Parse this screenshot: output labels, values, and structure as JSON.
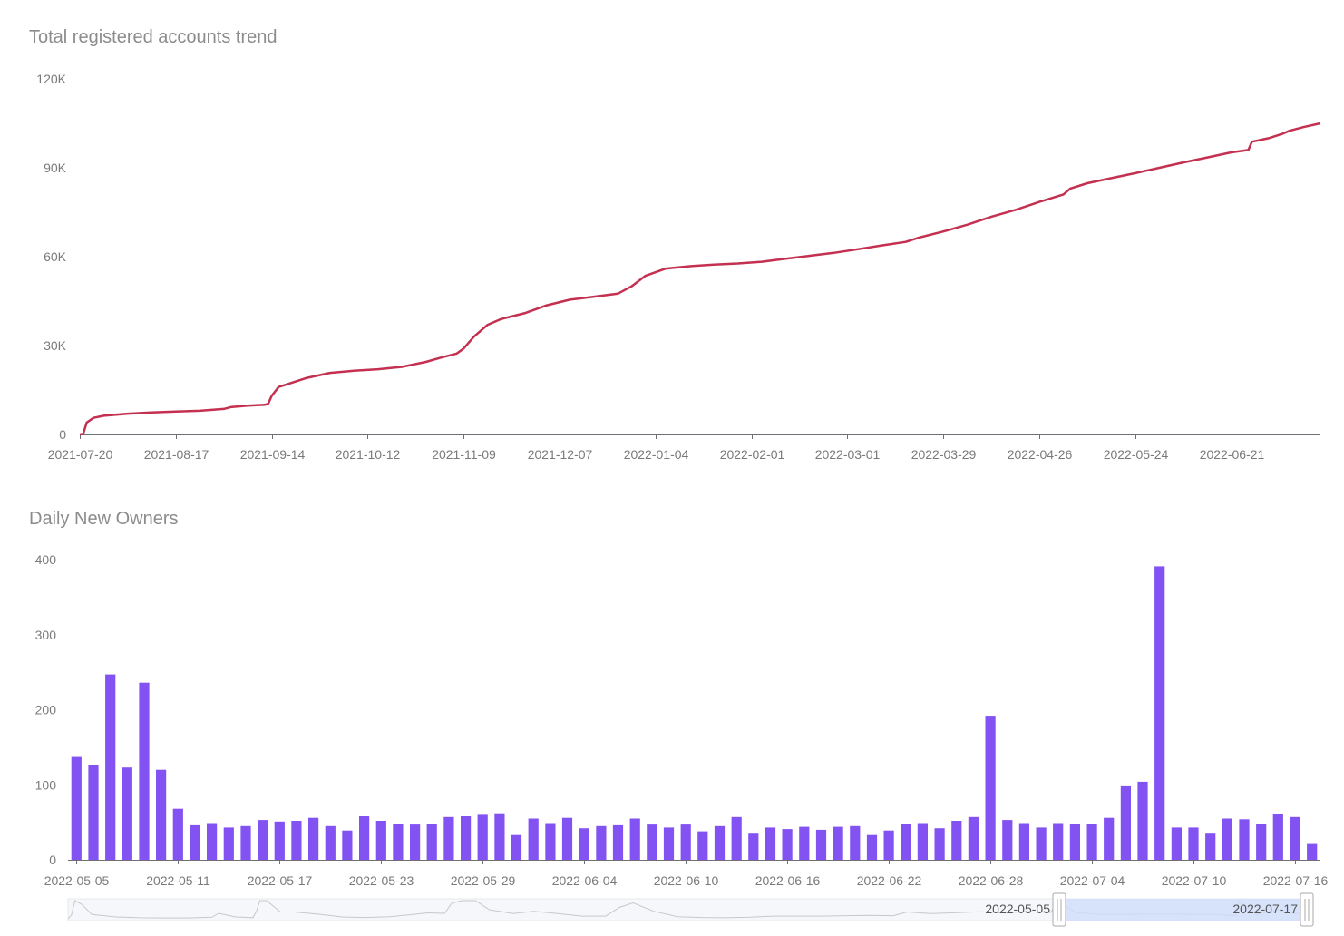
{
  "chart_data": [
    {
      "type": "line",
      "title": "Total registered accounts trend",
      "xlabel": "",
      "ylabel": "",
      "color": "#c4304f",
      "ylim": [
        0,
        120000
      ],
      "y_ticks": [
        "0",
        "30K",
        "60K",
        "90K",
        "120K"
      ],
      "y_tick_values": [
        0,
        30000,
        60000,
        90000,
        120000
      ],
      "x_ticks": [
        "2021-07-20",
        "2021-08-17",
        "2021-09-14",
        "2021-10-12",
        "2021-11-09",
        "2021-12-07",
        "2022-01-04",
        "2022-02-01",
        "2022-03-01",
        "2022-03-29",
        "2022-04-26",
        "2022-05-24",
        "2022-06-21"
      ],
      "x_range": [
        "2021-07-20",
        "2022-07-17"
      ],
      "series": [
        {
          "points": [
            [
              "2021-07-20",
              0
            ],
            [
              "2021-07-21",
              200
            ],
            [
              "2021-07-22",
              4000
            ],
            [
              "2021-07-24",
              5600
            ],
            [
              "2021-07-27",
              6300
            ],
            [
              "2021-08-03",
              7000
            ],
            [
              "2021-08-10",
              7400
            ],
            [
              "2021-08-17",
              7700
            ],
            [
              "2021-08-24",
              8000
            ],
            [
              "2021-08-31",
              8600
            ],
            [
              "2021-09-02",
              9200
            ],
            [
              "2021-09-07",
              9700
            ],
            [
              "2021-09-12",
              10000
            ],
            [
              "2021-09-13",
              10400
            ],
            [
              "2021-09-14",
              13000
            ],
            [
              "2021-09-16",
              16000
            ],
            [
              "2021-09-20",
              17500
            ],
            [
              "2021-09-24",
              19000
            ],
            [
              "2021-10-01",
              20800
            ],
            [
              "2021-10-08",
              21500
            ],
            [
              "2021-10-15",
              22000
            ],
            [
              "2021-10-22",
              22800
            ],
            [
              "2021-10-29",
              24500
            ],
            [
              "2021-11-02",
              25800
            ],
            [
              "2021-11-07",
              27300
            ],
            [
              "2021-11-09",
              29000
            ],
            [
              "2021-11-12",
              33000
            ],
            [
              "2021-11-16",
              37000
            ],
            [
              "2021-11-20",
              39000
            ],
            [
              "2021-11-27",
              41000
            ],
            [
              "2021-12-03",
              43500
            ],
            [
              "2021-12-10",
              45500
            ],
            [
              "2021-12-17",
              46500
            ],
            [
              "2021-12-24",
              47500
            ],
            [
              "2021-12-28",
              50000
            ],
            [
              "2022-01-01",
              53500
            ],
            [
              "2022-01-07",
              56000
            ],
            [
              "2022-01-14",
              56800
            ],
            [
              "2022-01-21",
              57300
            ],
            [
              "2022-01-28",
              57700
            ],
            [
              "2022-02-04",
              58300
            ],
            [
              "2022-02-11",
              59300
            ],
            [
              "2022-02-18",
              60300
            ],
            [
              "2022-02-25",
              61300
            ],
            [
              "2022-03-04",
              62500
            ],
            [
              "2022-03-11",
              63800
            ],
            [
              "2022-03-18",
              65000
            ],
            [
              "2022-03-22",
              66500
            ],
            [
              "2022-03-29",
              68500
            ],
            [
              "2022-04-05",
              70800
            ],
            [
              "2022-04-12",
              73500
            ],
            [
              "2022-04-19",
              75800
            ],
            [
              "2022-04-26",
              78500
            ],
            [
              "2022-05-03",
              81000
            ],
            [
              "2022-05-05",
              83000
            ],
            [
              "2022-05-10",
              84800
            ],
            [
              "2022-05-17",
              86500
            ],
            [
              "2022-05-24",
              88200
            ],
            [
              "2022-05-31",
              90000
            ],
            [
              "2022-06-07",
              91800
            ],
            [
              "2022-06-14",
              93500
            ],
            [
              "2022-06-21",
              95200
            ],
            [
              "2022-06-26",
              96000
            ],
            [
              "2022-06-27",
              98800
            ],
            [
              "2022-07-02",
              100000
            ],
            [
              "2022-07-06",
              101500
            ],
            [
              "2022-07-08",
              102500
            ],
            [
              "2022-07-12",
              103700
            ],
            [
              "2022-07-17",
              105000
            ]
          ]
        }
      ]
    },
    {
      "type": "bar",
      "title": "Daily New Owners",
      "xlabel": "",
      "ylabel": "",
      "color": "#8352f2",
      "ylim": [
        0,
        400
      ],
      "y_ticks": [
        "0",
        "100",
        "200",
        "300",
        "400"
      ],
      "y_tick_values": [
        0,
        100,
        200,
        300,
        400
      ],
      "start_date": "2022-05-05",
      "x_ticks": [
        "2022-05-05",
        "2022-05-11",
        "2022-05-17",
        "2022-05-23",
        "2022-05-29",
        "2022-06-04",
        "2022-06-10",
        "2022-06-16",
        "2022-06-22",
        "2022-06-28",
        "2022-07-04",
        "2022-07-10",
        "2022-07-16"
      ],
      "categories": [
        "2022-05-05",
        "2022-05-06",
        "2022-05-07",
        "2022-05-08",
        "2022-05-09",
        "2022-05-10",
        "2022-05-11",
        "2022-05-12",
        "2022-05-13",
        "2022-05-14",
        "2022-05-15",
        "2022-05-16",
        "2022-05-17",
        "2022-05-18",
        "2022-05-19",
        "2022-05-20",
        "2022-05-21",
        "2022-05-22",
        "2022-05-23",
        "2022-05-24",
        "2022-05-25",
        "2022-05-26",
        "2022-05-27",
        "2022-05-28",
        "2022-05-29",
        "2022-05-30",
        "2022-05-31",
        "2022-06-01",
        "2022-06-02",
        "2022-06-03",
        "2022-06-04",
        "2022-06-05",
        "2022-06-06",
        "2022-06-07",
        "2022-06-08",
        "2022-06-09",
        "2022-06-10",
        "2022-06-11",
        "2022-06-12",
        "2022-06-13",
        "2022-06-14",
        "2022-06-15",
        "2022-06-16",
        "2022-06-17",
        "2022-06-18",
        "2022-06-19",
        "2022-06-20",
        "2022-06-21",
        "2022-06-22",
        "2022-06-23",
        "2022-06-24",
        "2022-06-25",
        "2022-06-26",
        "2022-06-27",
        "2022-06-28",
        "2022-06-29",
        "2022-06-30",
        "2022-07-01",
        "2022-07-02",
        "2022-07-03",
        "2022-07-04",
        "2022-07-05",
        "2022-07-06",
        "2022-07-07",
        "2022-07-08",
        "2022-07-09",
        "2022-07-10",
        "2022-07-11",
        "2022-07-12",
        "2022-07-13",
        "2022-07-14",
        "2022-07-15",
        "2022-07-16",
        "2022-07-17"
      ],
      "values": [
        137,
        126,
        247,
        123,
        236,
        120,
        68,
        46,
        49,
        43,
        45,
        53,
        51,
        52,
        56,
        45,
        39,
        58,
        52,
        48,
        47,
        48,
        57,
        58,
        60,
        62,
        33,
        55,
        49,
        56,
        42,
        45,
        46,
        55,
        47,
        43,
        47,
        38,
        45,
        57,
        36,
        43,
        41,
        44,
        40,
        44,
        45,
        33,
        39,
        48,
        49,
        42,
        52,
        57,
        192,
        53,
        49,
        43,
        49,
        48,
        48,
        56,
        98,
        104,
        391,
        43,
        43,
        36,
        55,
        54,
        48,
        61,
        57,
        21
      ]
    }
  ],
  "zoom": {
    "start_label": "2022-05-05",
    "end_label": "2022-07-17"
  }
}
